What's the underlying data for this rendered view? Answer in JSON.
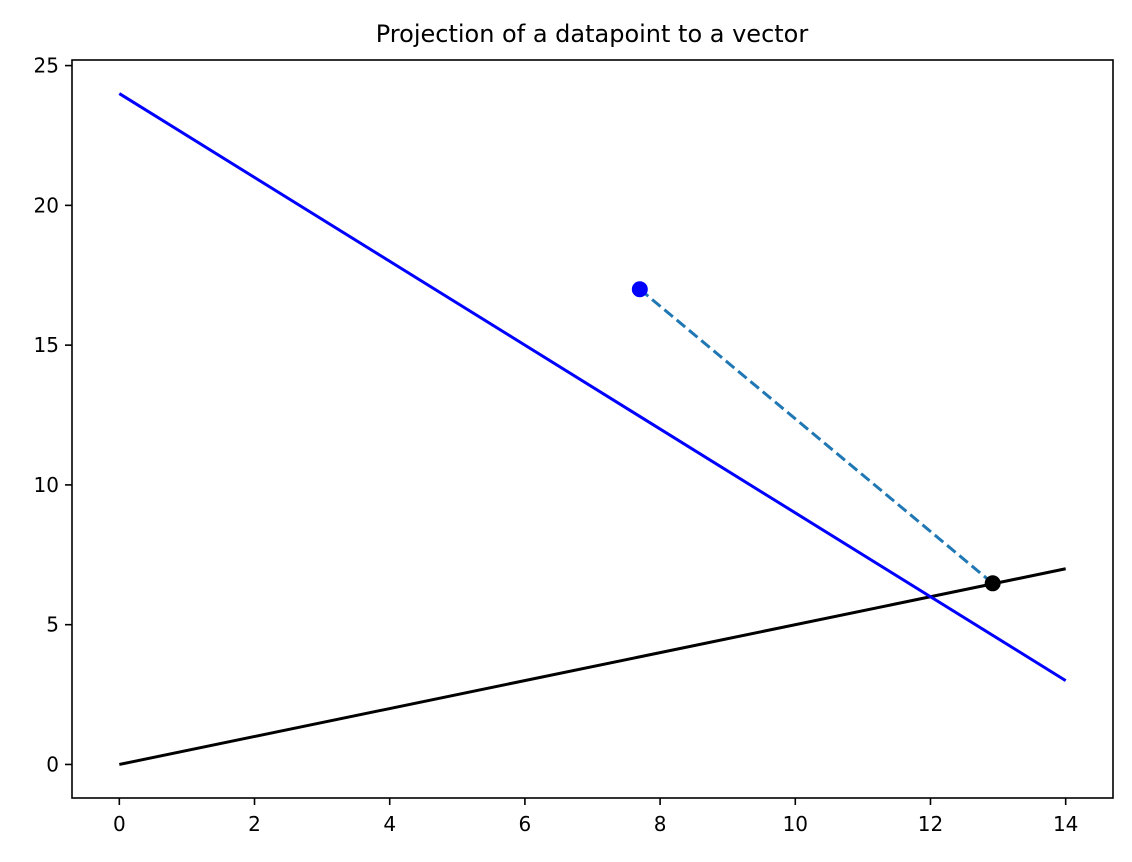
{
  "chart_data": {
    "type": "line",
    "title": "Projection of a datapoint to a vector",
    "xlabel": "",
    "ylabel": "",
    "xlim": [
      -0.7,
      14.7
    ],
    "ylim": [
      -1.2,
      25.2
    ],
    "grid": false,
    "legend": "none",
    "x_ticks": [
      0,
      2,
      4,
      6,
      8,
      10,
      12,
      14
    ],
    "y_ticks": [
      0,
      5,
      10,
      15,
      20,
      25
    ],
    "x_tick_labels": [
      "0",
      "2",
      "4",
      "6",
      "8",
      "10",
      "12",
      "14"
    ],
    "y_tick_labels": [
      "0",
      "5",
      "10",
      "15",
      "20",
      "25"
    ],
    "lines": [
      {
        "id": "vector-line",
        "x": [
          0,
          14
        ],
        "y": [
          0,
          7
        ],
        "color": "#000000",
        "style": "solid"
      },
      {
        "id": "perpendicular-line",
        "x": [
          0,
          14
        ],
        "y": [
          24,
          3
        ],
        "color": "#0000ff",
        "style": "solid"
      },
      {
        "id": "projection-segment",
        "x": [
          7.7,
          12.92
        ],
        "y": [
          17,
          6.48
        ],
        "color": "#1f77b4",
        "style": "dashed"
      }
    ],
    "points": [
      {
        "id": "datapoint",
        "x": 7.7,
        "y": 17,
        "color": "#0000ff"
      },
      {
        "id": "projected-point",
        "x": 12.92,
        "y": 6.48,
        "color": "#000000"
      }
    ]
  }
}
